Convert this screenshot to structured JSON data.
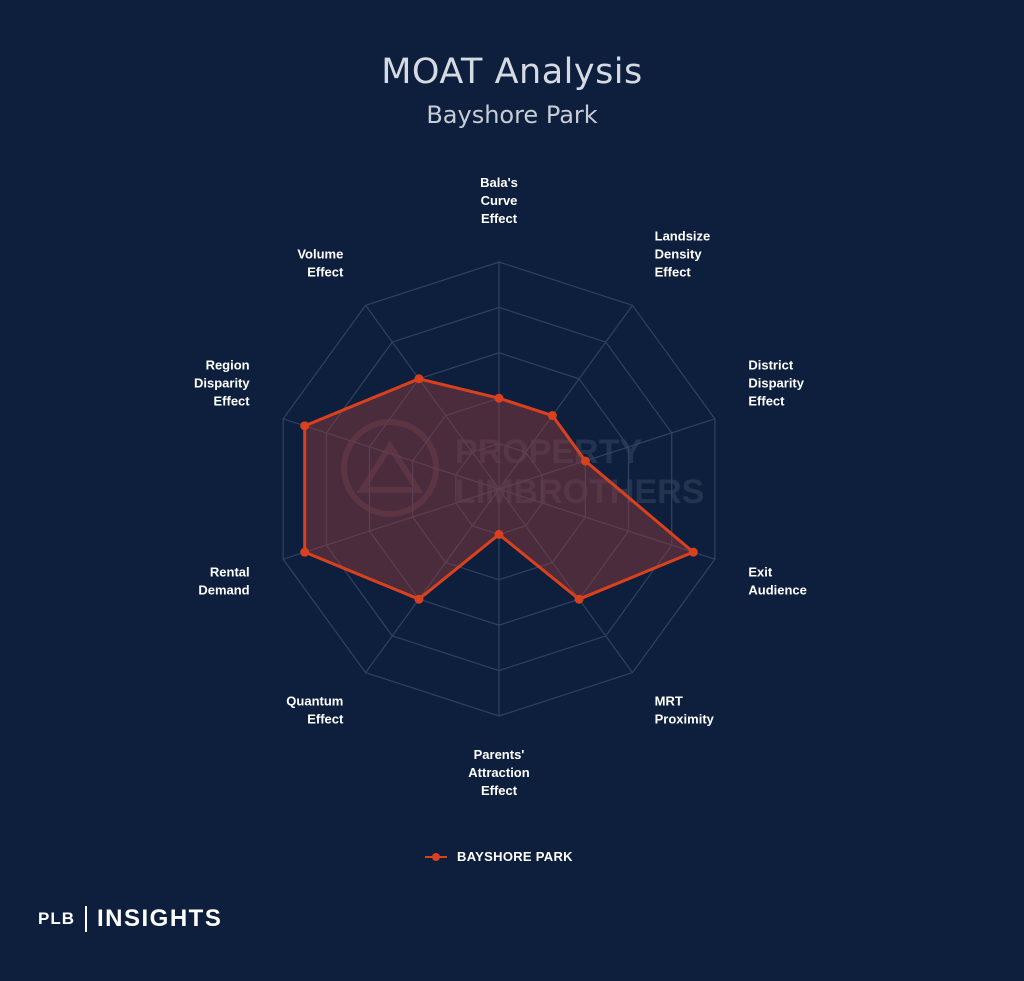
{
  "chart_data": {
    "type": "radar",
    "title": "MOAT Analysis",
    "subtitle": "Bayshore Park",
    "axes": [
      "Bala's\nCurve\nEffect",
      "Landsize\nDensity\nEffect",
      "District\nDisparity\nEffect",
      "Exit\nAudience",
      "MRT\nProximity",
      "Parents'\nAttraction\nEffect",
      "Quantum\nEffect",
      "Rental\nDemand",
      "Region\nDisparity\nEffect",
      "Volume\nEffect"
    ],
    "rlim": [
      0,
      5
    ],
    "grid_levels": 5,
    "series": [
      {
        "name": "BAYSHORE PARK",
        "color": "#d9411e",
        "fill": "rgba(150, 60, 60, 0.45)",
        "values": [
          2,
          2,
          2,
          4.5,
          3,
          1,
          3,
          4.5,
          4.5,
          3
        ]
      }
    ],
    "legend_position": "bottom"
  },
  "watermark": {
    "line1": "PROPERTY",
    "line2": "LIMBROTHERS"
  },
  "brand": {
    "left": "PLB",
    "right": "INSIGHTS"
  }
}
